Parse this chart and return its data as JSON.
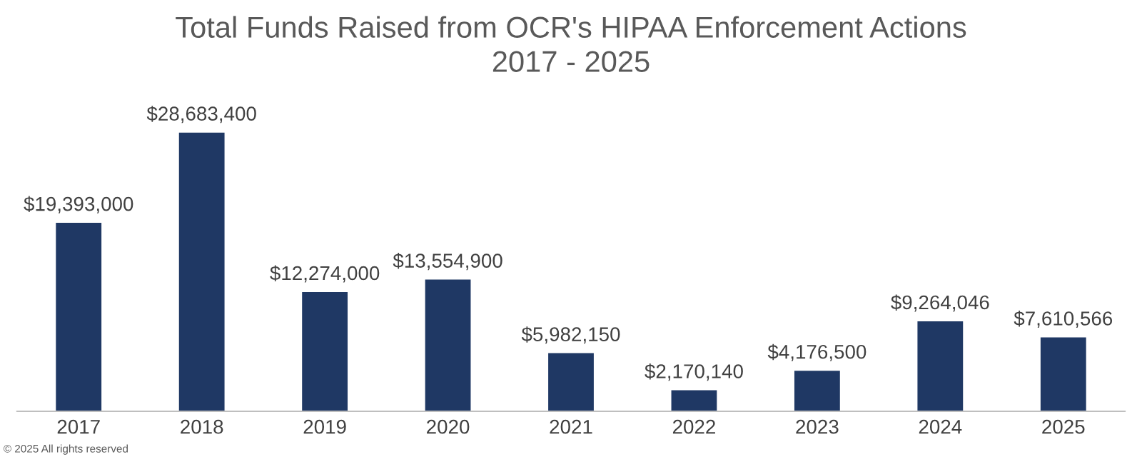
{
  "chart_data": {
    "type": "bar",
    "title": "Total Funds Raised from OCR's HIPAA Enforcement Actions\n2017 - 2025",
    "categories": [
      "2017",
      "2018",
      "2019",
      "2020",
      "2021",
      "2022",
      "2023",
      "2024",
      "2025"
    ],
    "values": [
      19393000,
      28683400,
      12274000,
      13554900,
      5982150,
      2170140,
      4176500,
      9264046,
      7610566
    ],
    "value_labels": [
      "$19,393,000",
      "$28,683,400",
      "$12,274,000",
      "$13,554,900",
      "$5,982,150",
      "$2,170,140",
      "$4,176,500",
      "$9,264,046",
      "$7,610,566"
    ],
    "color": "#1f3864",
    "grid": false,
    "legend": false,
    "annotations": [
      "© 2025 All rights reserved"
    ]
  }
}
